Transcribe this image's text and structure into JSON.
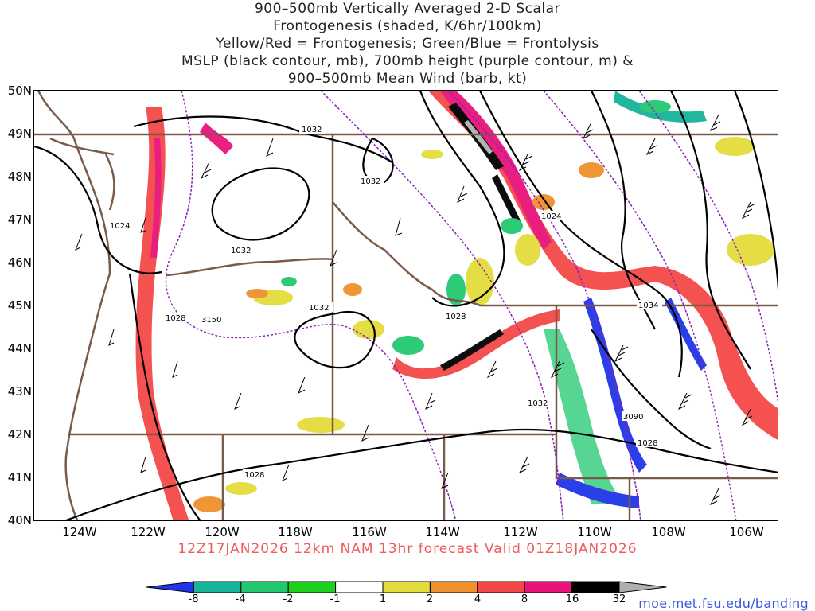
{
  "title": {
    "lines": [
      "900–500mb Vertically Averaged 2-D Scalar",
      "Frontogenesis (shaded, K/6hr/100km)",
      "Yellow/Red = Frontogenesis;  Green/Blue = Frontolysis",
      "MSLP (black contour, mb), 700mb height (purple contour, m) &",
      "900–500mb Mean Wind (barb, kt)"
    ]
  },
  "axes": {
    "lat_labels": [
      "50N",
      "49N",
      "48N",
      "47N",
      "46N",
      "45N",
      "44N",
      "43N",
      "42N",
      "41N",
      "40N"
    ],
    "lon_labels": [
      "124W",
      "122W",
      "120W",
      "118W",
      "116W",
      "114W",
      "112W",
      "110W",
      "108W",
      "106W"
    ]
  },
  "contour_labels": {
    "mslp": [
      "1032",
      "1032",
      "1024",
      "1032",
      "1024",
      "1028",
      "1032",
      "1028",
      "1034",
      "1032",
      "1028",
      "1028"
    ],
    "height": [
      "3150",
      "3090"
    ]
  },
  "forecast": {
    "valid_text": "12Z17JAN2026 12km NAM 13hr forecast Valid 01Z18JAN2026"
  },
  "colorbar": {
    "labels": [
      "-8",
      "-4",
      "-2",
      "-1",
      "1",
      "2",
      "4",
      "8",
      "16",
      "32"
    ],
    "colors": [
      "#2035e8",
      "#16b49a",
      "#22c870",
      "#1ed01e",
      "#ffffff",
      "#e3dc3a",
      "#f0902c",
      "#f44848",
      "#e8147a",
      "#000000",
      "#b0b0b0"
    ]
  },
  "credit": "moe.met.fsu.edu/banding"
}
